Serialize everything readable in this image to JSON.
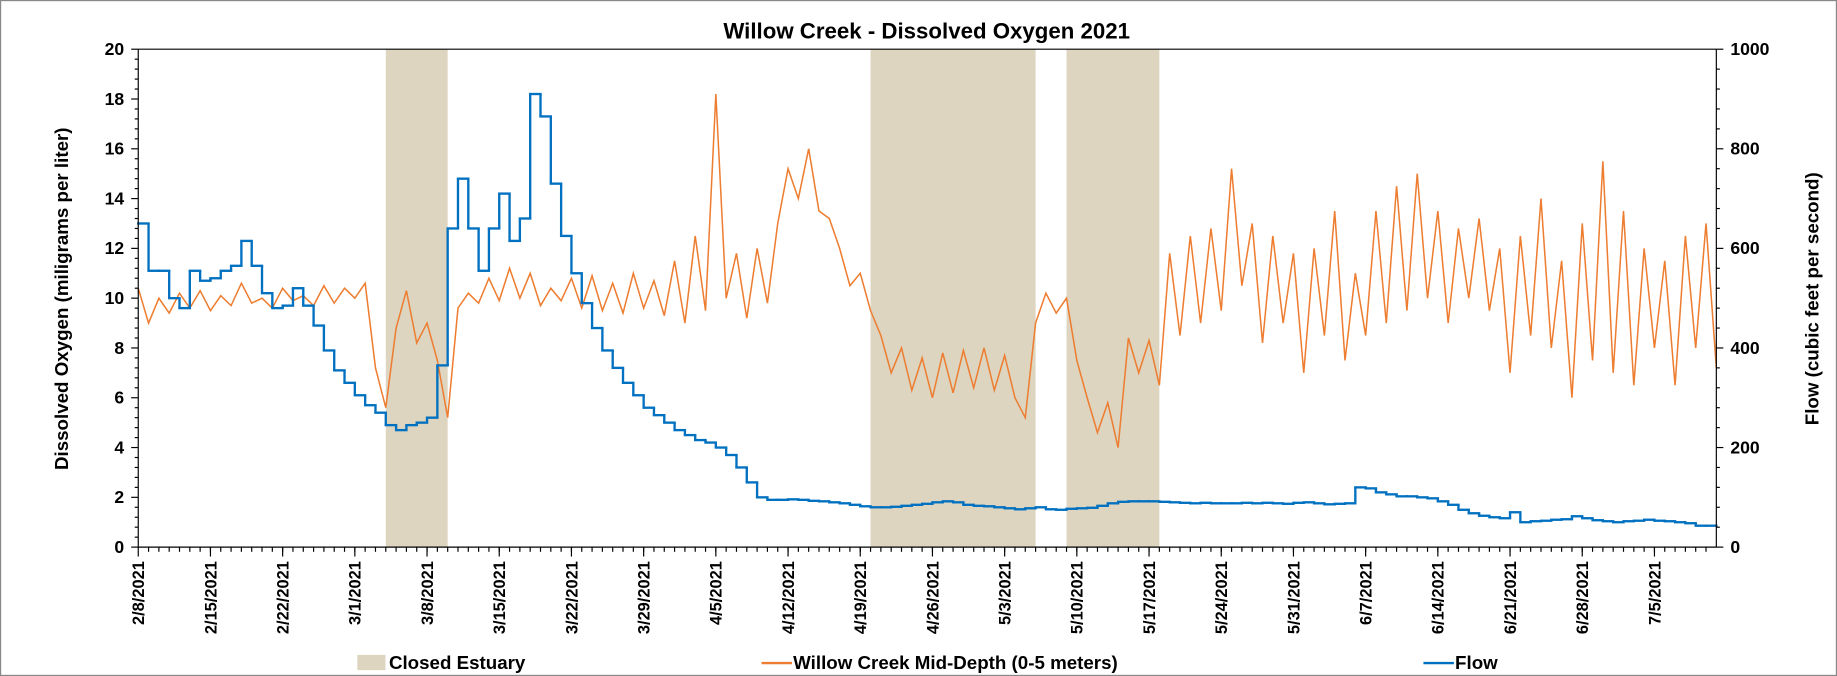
{
  "chart_data": {
    "type": "line",
    "title": "Willow Creek - Dissolved Oxygen 2021",
    "ylabel": "Dissolved Oxygen (miligrams per liter)",
    "y2label": "Flow (cubic feet per second)",
    "xlim": [
      "2021-02-08",
      "2021-07-11"
    ],
    "ylim": [
      0,
      20
    ],
    "yticks": [
      0,
      2,
      4,
      6,
      8,
      10,
      12,
      14,
      16,
      18,
      20
    ],
    "y2lim": [
      0,
      1000
    ],
    "y2ticks": [
      0,
      200,
      400,
      600,
      800,
      1000
    ],
    "xticks": [
      {
        "value": "2021-02-08",
        "label": "2/8/2021"
      },
      {
        "value": "2021-02-15",
        "label": "2/15/2021"
      },
      {
        "value": "2021-02-22",
        "label": "2/22/2021"
      },
      {
        "value": "2021-03-01",
        "label": "3/1/2021"
      },
      {
        "value": "2021-03-08",
        "label": "3/8/2021"
      },
      {
        "value": "2021-03-15",
        "label": "3/15/2021"
      },
      {
        "value": "2021-03-22",
        "label": "3/22/2021"
      },
      {
        "value": "2021-03-29",
        "label": "3/29/2021"
      },
      {
        "value": "2021-04-05",
        "label": "4/5/2021"
      },
      {
        "value": "2021-04-12",
        "label": "4/12/2021"
      },
      {
        "value": "2021-04-19",
        "label": "4/19/2021"
      },
      {
        "value": "2021-04-26",
        "label": "4/26/2021"
      },
      {
        "value": "2021-05-03",
        "label": "5/3/2021"
      },
      {
        "value": "2021-05-10",
        "label": "5/10/2021"
      },
      {
        "value": "2021-05-17",
        "label": "5/17/2021"
      },
      {
        "value": "2021-05-24",
        "label": "5/24/2021"
      },
      {
        "value": "2021-05-31",
        "label": "5/31/2021"
      },
      {
        "value": "2021-06-07",
        "label": "6/7/2021"
      },
      {
        "value": "2021-06-14",
        "label": "6/14/2021"
      },
      {
        "value": "2021-06-21",
        "label": "6/21/2021"
      },
      {
        "value": "2021-06-28",
        "label": "6/28/2021"
      },
      {
        "value": "2021-07-05",
        "label": "7/5/2021"
      }
    ],
    "spans": {
      "name": "Closed Estuary",
      "color": "#ddd5c0",
      "ranges": [
        [
          "2021-03-04",
          "2021-03-10"
        ],
        [
          "2021-04-20",
          "2021-05-06"
        ],
        [
          "2021-05-09",
          "2021-05-18"
        ]
      ]
    },
    "x": [
      "2021-02-08",
      "2021-02-09",
      "2021-02-10",
      "2021-02-11",
      "2021-02-12",
      "2021-02-13",
      "2021-02-14",
      "2021-02-15",
      "2021-02-16",
      "2021-02-17",
      "2021-02-18",
      "2021-02-19",
      "2021-02-20",
      "2021-02-21",
      "2021-02-22",
      "2021-02-23",
      "2021-02-24",
      "2021-02-25",
      "2021-02-26",
      "2021-02-27",
      "2021-02-28",
      "2021-03-01",
      "2021-03-02",
      "2021-03-03",
      "2021-03-04",
      "2021-03-05",
      "2021-03-06",
      "2021-03-07",
      "2021-03-08",
      "2021-03-09",
      "2021-03-10",
      "2021-03-11",
      "2021-03-12",
      "2021-03-13",
      "2021-03-14",
      "2021-03-15",
      "2021-03-16",
      "2021-03-17",
      "2021-03-18",
      "2021-03-19",
      "2021-03-20",
      "2021-03-21",
      "2021-03-22",
      "2021-03-23",
      "2021-03-24",
      "2021-03-25",
      "2021-03-26",
      "2021-03-27",
      "2021-03-28",
      "2021-03-29",
      "2021-03-30",
      "2021-03-31",
      "2021-04-01",
      "2021-04-02",
      "2021-04-03",
      "2021-04-04",
      "2021-04-05",
      "2021-04-06",
      "2021-04-07",
      "2021-04-08",
      "2021-04-09",
      "2021-04-10",
      "2021-04-11",
      "2021-04-12",
      "2021-04-13",
      "2021-04-14",
      "2021-04-15",
      "2021-04-16",
      "2021-04-17",
      "2021-04-18",
      "2021-04-19",
      "2021-04-20",
      "2021-04-21",
      "2021-04-22",
      "2021-04-23",
      "2021-04-24",
      "2021-04-25",
      "2021-04-26",
      "2021-04-27",
      "2021-04-28",
      "2021-04-29",
      "2021-04-30",
      "2021-05-01",
      "2021-05-02",
      "2021-05-03",
      "2021-05-04",
      "2021-05-05",
      "2021-05-06",
      "2021-05-07",
      "2021-05-08",
      "2021-05-09",
      "2021-05-10",
      "2021-05-11",
      "2021-05-12",
      "2021-05-13",
      "2021-05-14",
      "2021-05-15",
      "2021-05-16",
      "2021-05-17",
      "2021-05-18",
      "2021-05-19",
      "2021-05-20",
      "2021-05-21",
      "2021-05-22",
      "2021-05-23",
      "2021-05-24",
      "2021-05-25",
      "2021-05-26",
      "2021-05-27",
      "2021-05-28",
      "2021-05-29",
      "2021-05-30",
      "2021-05-31",
      "2021-06-01",
      "2021-06-02",
      "2021-06-03",
      "2021-06-04",
      "2021-06-05",
      "2021-06-06",
      "2021-06-07",
      "2021-06-08",
      "2021-06-09",
      "2021-06-10",
      "2021-06-11",
      "2021-06-12",
      "2021-06-13",
      "2021-06-14",
      "2021-06-15",
      "2021-06-16",
      "2021-06-17",
      "2021-06-18",
      "2021-06-19",
      "2021-06-20",
      "2021-06-21",
      "2021-06-22",
      "2021-06-23",
      "2021-06-24",
      "2021-06-25",
      "2021-06-26",
      "2021-06-27",
      "2021-06-28",
      "2021-06-29",
      "2021-06-30",
      "2021-07-01",
      "2021-07-02",
      "2021-07-03",
      "2021-07-04",
      "2021-07-05",
      "2021-07-06",
      "2021-07-07",
      "2021-07-08",
      "2021-07-09",
      "2021-07-10",
      "2021-07-11"
    ],
    "series": [
      {
        "name": "Willow Creek Mid-Depth (0-5 meters)",
        "color": "#ed7d31",
        "values": [
          10.4,
          9.0,
          10.0,
          9.4,
          10.2,
          9.6,
          10.3,
          9.5,
          10.1,
          9.7,
          10.6,
          9.8,
          10.0,
          9.6,
          10.4,
          9.9,
          10.1,
          9.7,
          10.5,
          9.8,
          10.4,
          10.0,
          10.6,
          7.2,
          5.6,
          8.8,
          10.3,
          8.2,
          9.0,
          7.5,
          5.2,
          9.6,
          10.2,
          9.8,
          10.8,
          9.9,
          11.2,
          10.0,
          11.0,
          9.7,
          10.4,
          9.9,
          10.8,
          9.6,
          10.9,
          9.5,
          10.6,
          9.4,
          11.0,
          9.6,
          10.7,
          9.3,
          11.5,
          9.0,
          12.5,
          9.5,
          18.2,
          10.0,
          11.8,
          9.2,
          12.0,
          9.8,
          13.0,
          15.2,
          14.0,
          16.0,
          13.5,
          13.2,
          12.0,
          10.5,
          11.0,
          9.5,
          8.5,
          7.0,
          8.0,
          6.3,
          7.6,
          6.0,
          7.8,
          6.2,
          7.9,
          6.4,
          8.0,
          6.3,
          7.7,
          6.0,
          5.2,
          9.0,
          10.2,
          9.4,
          10.0,
          7.5,
          6.0,
          4.6,
          5.8,
          4.0,
          8.4,
          7.0,
          8.3,
          6.5,
          11.8,
          8.5,
          12.5,
          9.0,
          12.8,
          9.5,
          15.2,
          10.5,
          13.0,
          8.2,
          12.5,
          9.0,
          11.8,
          7.0,
          12.0,
          8.5,
          13.5,
          7.5,
          11.0,
          8.5,
          13.5,
          9.0,
          14.5,
          9.5,
          15.0,
          10.0,
          13.5,
          9.0,
          12.8,
          10.0,
          13.2,
          9.5,
          12.0,
          7.0,
          12.5,
          8.5,
          14.0,
          8.0,
          11.5,
          6.0,
          13.0,
          7.5,
          15.5,
          7.0,
          13.5,
          6.5,
          12.0,
          8.0,
          11.5,
          6.5,
          12.5,
          8.0,
          13.0,
          7.2
        ]
      },
      {
        "name": "Flow",
        "color": "#0070c0",
        "axis": "y2",
        "step": true,
        "values": [
          650,
          555,
          555,
          500,
          480,
          555,
          535,
          540,
          555,
          565,
          615,
          565,
          510,
          480,
          485,
          520,
          485,
          445,
          395,
          355,
          330,
          305,
          285,
          270,
          245,
          235,
          245,
          250,
          260,
          365,
          640,
          740,
          640,
          555,
          640,
          710,
          615,
          660,
          910,
          865,
          730,
          625,
          550,
          490,
          440,
          395,
          360,
          330,
          305,
          280,
          265,
          250,
          235,
          225,
          215,
          210,
          200,
          185,
          160,
          130,
          100,
          95,
          95,
          96,
          95,
          93,
          92,
          90,
          88,
          85,
          82,
          80,
          80,
          81,
          83,
          85,
          87,
          90,
          92,
          90,
          85,
          83,
          82,
          80,
          78,
          76,
          78,
          80,
          76,
          75,
          77,
          78,
          79,
          83,
          88,
          91,
          92,
          92,
          92,
          91,
          90,
          89,
          88,
          89,
          88,
          88,
          88,
          89,
          88,
          89,
          88,
          87,
          89,
          90,
          88,
          86,
          87,
          88,
          120,
          118,
          110,
          106,
          102,
          102,
          100,
          98,
          92,
          85,
          75,
          68,
          63,
          60,
          58,
          70,
          50,
          52,
          53,
          55,
          56,
          62,
          58,
          54,
          52,
          50,
          52,
          53,
          55,
          53,
          52,
          50,
          48,
          43,
          43,
          43
        ]
      }
    ]
  }
}
